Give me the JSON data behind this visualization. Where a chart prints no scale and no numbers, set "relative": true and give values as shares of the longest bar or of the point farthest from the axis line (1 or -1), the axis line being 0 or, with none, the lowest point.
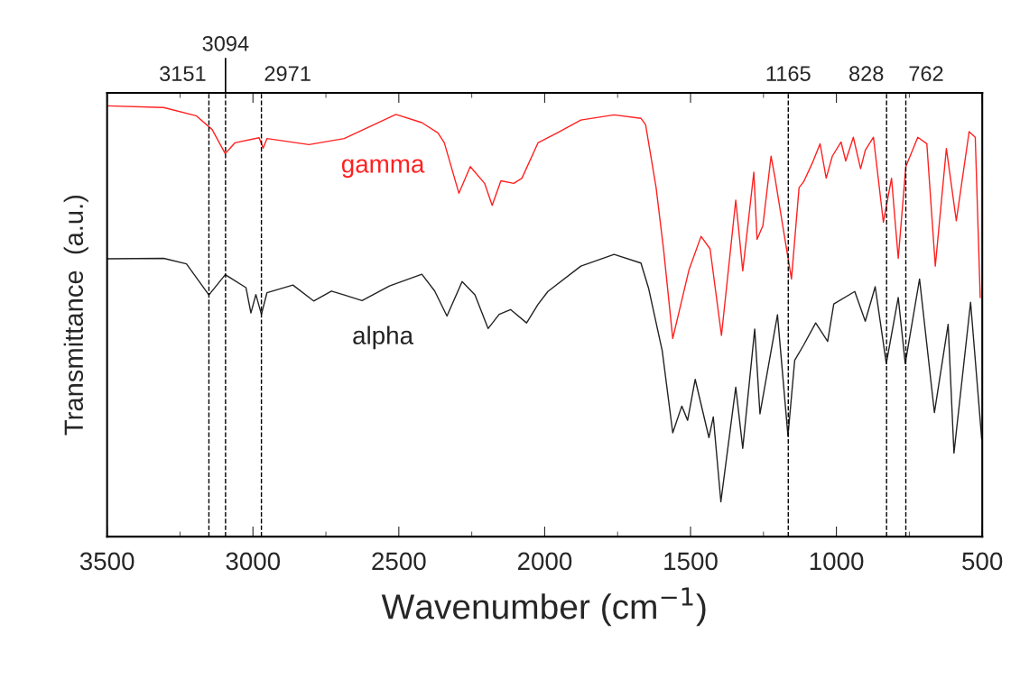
{
  "chart_data": {
    "type": "line",
    "relative": true,
    "xlabel": "Wavenumber (cm$^{−1}$)",
    "ylabel": "Transmittance  (a.u.)",
    "xlim": [
      3500,
      500
    ],
    "xticks": [
      3500,
      3000,
      2500,
      2000,
      1500,
      1000,
      500
    ],
    "series": [
      {
        "name": "gamma",
        "color": "#ff2020",
        "x": [
          3500,
          3306,
          3195,
          3140,
          3095,
          3062,
          2979,
          2965,
          2952,
          2808,
          2687,
          2510,
          2421,
          2366,
          2344,
          2294,
          2255,
          2206,
          2180,
          2150,
          2106,
          2078,
          2023,
          1957,
          1876,
          1762,
          1670,
          1654,
          1618,
          1592,
          1561,
          1505,
          1464,
          1433,
          1394,
          1345,
          1321,
          1283,
          1272,
          1252,
          1224,
          1211,
          1185,
          1154,
          1128,
          1112,
          1082,
          1056,
          1035,
          1014,
          984,
          968,
          942,
          917,
          901,
          873,
          839,
          811,
          788,
          762,
          721,
          690,
          661,
          623,
          589,
          545,
          524,
          507
        ],
        "values": [
          1.0,
          0.996,
          0.977,
          0.945,
          0.889,
          0.914,
          0.926,
          0.902,
          0.924,
          0.91,
          0.924,
          0.98,
          0.961,
          0.937,
          0.914,
          0.797,
          0.859,
          0.82,
          0.769,
          0.826,
          0.82,
          0.832,
          0.914,
          0.937,
          0.967,
          0.979,
          0.971,
          0.956,
          0.81,
          0.664,
          0.46,
          0.62,
          0.697,
          0.668,
          0.467,
          0.781,
          0.617,
          0.846,
          0.69,
          0.722,
          0.883,
          0.835,
          0.726,
          0.598,
          0.81,
          0.824,
          0.868,
          0.912,
          0.832,
          0.883,
          0.916,
          0.872,
          0.927,
          0.854,
          0.897,
          0.927,
          0.73,
          0.832,
          0.646,
          0.859,
          0.927,
          0.912,
          0.628,
          0.901,
          0.733,
          0.94,
          0.927,
          0.555
        ]
      },
      {
        "name": "alpha",
        "color": "#222222",
        "x": [
          3500,
          3306,
          3228,
          3151,
          3095,
          3024,
          3007,
          2990,
          2971,
          2952,
          2863,
          2792,
          2731,
          2687,
          2626,
          2532,
          2421,
          2377,
          2335,
          2283,
          2239,
          2194,
          2156,
          2117,
          2062,
          2023,
          1989,
          1876,
          1762,
          1670,
          1644,
          1597,
          1561,
          1530,
          1510,
          1484,
          1437,
          1422,
          1396,
          1345,
          1321,
          1280,
          1262,
          1202,
          1166,
          1143,
          1112,
          1071,
          1030,
          1009,
          937,
          901,
          867,
          829,
          788,
          764,
          715,
          664,
          617,
          597,
          540,
          502
        ],
        "values": [
          0.645,
          0.646,
          0.633,
          0.561,
          0.608,
          0.578,
          0.519,
          0.562,
          0.516,
          0.566,
          0.584,
          0.547,
          0.57,
          0.561,
          0.548,
          0.582,
          0.609,
          0.57,
          0.512,
          0.592,
          0.561,
          0.483,
          0.516,
          0.527,
          0.496,
          0.539,
          0.569,
          0.628,
          0.655,
          0.635,
          0.577,
          0.431,
          0.241,
          0.303,
          0.27,
          0.365,
          0.23,
          0.278,
          0.081,
          0.347,
          0.205,
          0.482,
          0.285,
          0.515,
          0.234,
          0.409,
          0.445,
          0.496,
          0.453,
          0.54,
          0.569,
          0.5,
          0.58,
          0.402,
          0.555,
          0.402,
          0.598,
          0.288,
          0.493,
          0.194,
          0.544,
          0.227
        ]
      }
    ],
    "ref_lines": [
      {
        "axis": "x",
        "value": 3151,
        "label": "3151",
        "color": "#000000",
        "line_style": "dashed"
      },
      {
        "axis": "x",
        "value": 3094,
        "label": "3094",
        "color": "#000000",
        "line_style": "dashed"
      },
      {
        "axis": "x",
        "value": 2971,
        "label": "2971",
        "color": "#000000",
        "line_style": "dashed"
      },
      {
        "axis": "x",
        "value": 1165,
        "label": "1165",
        "color": "#000000",
        "line_style": "dashed"
      },
      {
        "axis": "x",
        "value": 828,
        "label": "828",
        "color": "#000000",
        "line_style": "dashed"
      },
      {
        "axis": "x",
        "value": 762,
        "label": "762",
        "color": "#000000",
        "line_style": "dashed"
      }
    ]
  }
}
